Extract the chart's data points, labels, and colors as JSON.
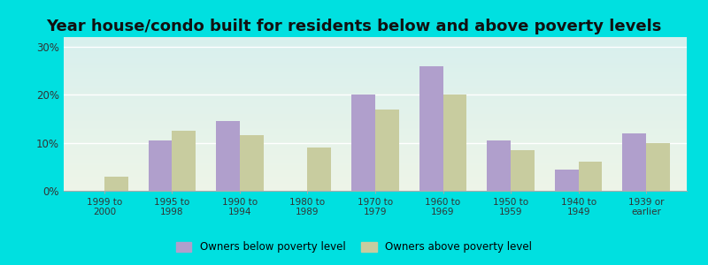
{
  "title": "Year house/condo built for residents below and above poverty levels",
  "categories": [
    "1999 to\n2000",
    "1995 to\n1998",
    "1990 to\n1994",
    "1980 to\n1989",
    "1970 to\n1979",
    "1960 to\n1969",
    "1950 to\n1959",
    "1940 to\n1949",
    "1939 or\nearlier"
  ],
  "below_poverty": [
    0.0,
    10.5,
    14.5,
    0.0,
    20.0,
    26.0,
    10.5,
    4.5,
    12.0
  ],
  "above_poverty": [
    3.0,
    12.5,
    11.5,
    9.0,
    17.0,
    20.0,
    8.5,
    6.0,
    10.0
  ],
  "below_color": "#b09fcc",
  "above_color": "#c8cc9f",
  "ylim": [
    0,
    32
  ],
  "yticks": [
    0,
    10,
    20,
    30
  ],
  "ytick_labels": [
    "0%",
    "10%",
    "20%",
    "30%"
  ],
  "legend_below": "Owners below poverty level",
  "legend_above": "Owners above poverty level",
  "bg_top": "#d8f0ee",
  "bg_bottom": "#eef5e8",
  "outer_bg": "#00e0e0",
  "title_fontsize": 13,
  "bar_width": 0.35
}
